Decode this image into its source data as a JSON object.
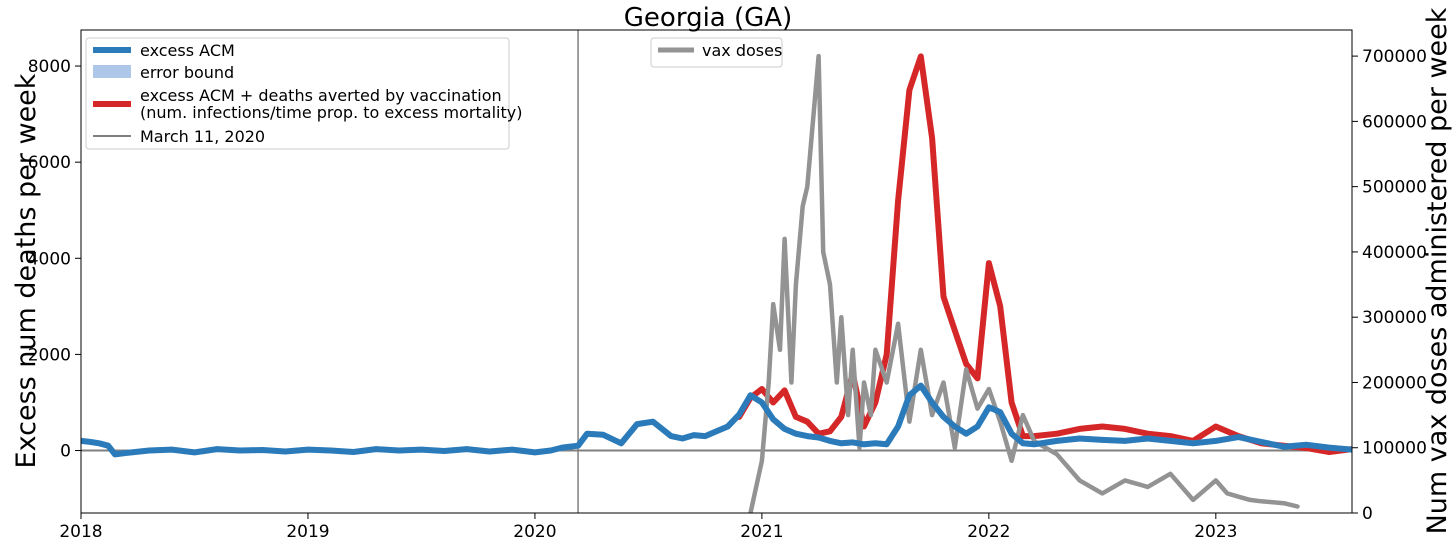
{
  "chart_data": {
    "type": "line",
    "title": "Georgia (GA)",
    "ylabel_left": "Excess num deaths per week",
    "ylabel_right": "Num vax doses administered per week",
    "xlabel": "",
    "xlim": [
      2018.0,
      2023.6
    ],
    "ylim_left": [
      -1300,
      8750
    ],
    "ylim_right": [
      0,
      740000
    ],
    "x_ticks": [
      2018,
      2019,
      2020,
      2021,
      2022,
      2023
    ],
    "x_tick_labels": [
      "2018",
      "2019",
      "2020",
      "2021",
      "2022",
      "2023"
    ],
    "y_left_ticks": [
      0,
      2000,
      4000,
      6000,
      8000
    ],
    "y_left_tick_labels": [
      "0",
      "2000",
      "4000",
      "6000",
      "8000"
    ],
    "y_right_ticks": [
      0,
      100000,
      200000,
      300000,
      400000,
      500000,
      600000,
      700000
    ],
    "y_right_tick_labels": [
      "0",
      "100000",
      "200000",
      "300000",
      "400000",
      "500000",
      "600000",
      "700000"
    ],
    "vline": {
      "x": 2020.19,
      "label": "March 11, 2020"
    },
    "hline": {
      "y": 0
    },
    "legend_left": {
      "position": "upper-left",
      "entries": [
        {
          "label": "excess ACM",
          "color": "#2b7bba",
          "kind": "line"
        },
        {
          "label": "error bound",
          "color": "#aec7e8",
          "kind": "patch"
        },
        {
          "label": "excess ACM + deaths averted by vaccination",
          "label2": "(num. infections/time prop. to excess mortality)",
          "color": "#d62728",
          "kind": "line"
        },
        {
          "label": "March 11, 2020",
          "color": "#7f7f7f",
          "kind": "thin"
        }
      ]
    },
    "legend_right": {
      "position": "upper-center",
      "entries": [
        {
          "label": "vax doses",
          "color": "#8c8c8c",
          "kind": "line"
        }
      ]
    },
    "colors": {
      "excess": "#2b7bba",
      "error": "#aec7e8",
      "averted": "#d62728",
      "vax": "#939393",
      "ref": "#7f7f7f"
    },
    "series": [
      {
        "name": "excess ACM",
        "axis": "left",
        "x": [
          2018.0,
          2018.04,
          2018.08,
          2018.12,
          2018.15,
          2018.2,
          2018.3,
          2018.4,
          2018.5,
          2018.6,
          2018.7,
          2018.8,
          2018.9,
          2019.0,
          2019.1,
          2019.2,
          2019.3,
          2019.4,
          2019.5,
          2019.6,
          2019.7,
          2019.8,
          2019.9,
          2020.0,
          2020.07,
          2020.12,
          2020.19,
          2020.23,
          2020.3,
          2020.38,
          2020.45,
          2020.52,
          2020.6,
          2020.65,
          2020.7,
          2020.75,
          2020.8,
          2020.85,
          2020.9,
          2020.95,
          2021.0,
          2021.05,
          2021.1,
          2021.15,
          2021.2,
          2021.25,
          2021.3,
          2021.35,
          2021.4,
          2021.45,
          2021.5,
          2021.55,
          2021.6,
          2021.65,
          2021.7,
          2021.75,
          2021.8,
          2021.85,
          2021.9,
          2021.95,
          2022.0,
          2022.05,
          2022.1,
          2022.15,
          2022.2,
          2022.3,
          2022.4,
          2022.5,
          2022.6,
          2022.7,
          2022.8,
          2022.9,
          2023.0,
          2023.1,
          2023.2,
          2023.3,
          2023.4,
          2023.5,
          2023.6
        ],
        "values": [
          200,
          180,
          150,
          100,
          -80,
          -50,
          0,
          20,
          -40,
          30,
          0,
          10,
          -20,
          20,
          0,
          -30,
          30,
          0,
          20,
          -10,
          30,
          -20,
          20,
          -40,
          0,
          60,
          100,
          350,
          330,
          150,
          550,
          600,
          300,
          250,
          320,
          300,
          400,
          500,
          750,
          1150,
          1000,
          650,
          450,
          350,
          300,
          270,
          200,
          150,
          170,
          130,
          150,
          130,
          500,
          1150,
          1350,
          1000,
          700,
          500,
          350,
          500,
          900,
          800,
          350,
          150,
          130,
          200,
          250,
          220,
          200,
          250,
          200,
          150,
          200,
          280,
          180,
          80,
          120,
          60,
          20
        ]
      },
      {
        "name": "excess ACM + deaths averted by vaccination",
        "axis": "left",
        "x": [
          2020.9,
          2020.95,
          2021.0,
          2021.05,
          2021.1,
          2021.15,
          2021.2,
          2021.25,
          2021.3,
          2021.35,
          2021.4,
          2021.45,
          2021.5,
          2021.55,
          2021.6,
          2021.65,
          2021.7,
          2021.75,
          2021.8,
          2021.85,
          2021.9,
          2021.95,
          2022.0,
          2022.05,
          2022.1,
          2022.15,
          2022.2,
          2022.3,
          2022.4,
          2022.5,
          2022.6,
          2022.7,
          2022.8,
          2022.9,
          2023.0,
          2023.1,
          2023.2,
          2023.3,
          2023.4,
          2023.5,
          2023.6
        ],
        "values": [
          700,
          1100,
          1280,
          1000,
          1250,
          700,
          600,
          350,
          400,
          700,
          1600,
          500,
          1000,
          2000,
          5200,
          7500,
          8200,
          6500,
          3200,
          2500,
          1800,
          1500,
          3900,
          3000,
          1000,
          300,
          300,
          350,
          450,
          500,
          450,
          350,
          300,
          200,
          500,
          300,
          150,
          100,
          50,
          -30,
          30
        ]
      },
      {
        "name": "vax doses",
        "axis": "right",
        "x": [
          2020.95,
          2021.0,
          2021.03,
          2021.05,
          2021.08,
          2021.1,
          2021.13,
          2021.15,
          2021.18,
          2021.2,
          2021.25,
          2021.27,
          2021.3,
          2021.33,
          2021.35,
          2021.38,
          2021.4,
          2021.43,
          2021.45,
          2021.48,
          2021.5,
          2021.55,
          2021.6,
          2021.65,
          2021.7,
          2021.75,
          2021.8,
          2021.85,
          2021.9,
          2021.95,
          2022.0,
          2022.05,
          2022.1,
          2022.15,
          2022.2,
          2022.3,
          2022.4,
          2022.5,
          2022.6,
          2022.7,
          2022.8,
          2022.9,
          2023.0,
          2023.05,
          2023.1,
          2023.15,
          2023.2,
          2023.3,
          2023.36
        ],
        "values": [
          0,
          80000,
          200000,
          320000,
          250000,
          420000,
          200000,
          350000,
          470000,
          500000,
          700000,
          400000,
          350000,
          200000,
          300000,
          150000,
          250000,
          100000,
          200000,
          150000,
          250000,
          200000,
          290000,
          140000,
          250000,
          150000,
          200000,
          100000,
          220000,
          160000,
          190000,
          140000,
          80000,
          150000,
          110000,
          90000,
          50000,
          30000,
          50000,
          40000,
          60000,
          20000,
          50000,
          30000,
          25000,
          20000,
          18000,
          15000,
          10000
        ]
      }
    ]
  }
}
